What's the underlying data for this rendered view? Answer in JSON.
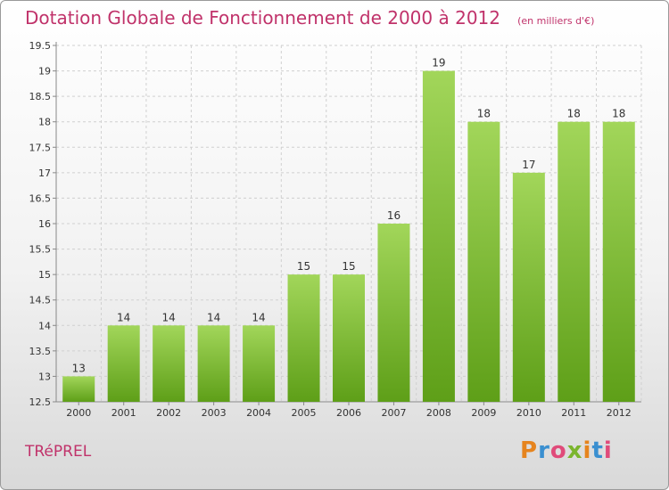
{
  "header": {
    "title": "Dotation Globale de Fonctionnement de 2000 à 2012",
    "unit": "(en milliers d'€)"
  },
  "footer": {
    "commune": "TRéPREL",
    "logo_text": "Proxiti"
  },
  "colors": {
    "title": "#c0326a",
    "bar_top": "#a2d65a",
    "bar_bottom": "#5e9f18",
    "grid": "#d0d0d0",
    "axis_text": "#333333"
  },
  "chart_data": {
    "type": "bar",
    "categories": [
      "2000",
      "2001",
      "2002",
      "2003",
      "2004",
      "2005",
      "2006",
      "2007",
      "2008",
      "2009",
      "2010",
      "2011",
      "2012"
    ],
    "values": [
      13,
      14,
      14,
      14,
      14,
      15,
      15,
      16,
      19,
      18,
      17,
      18,
      18
    ],
    "data_labels": [
      "13",
      "14",
      "14",
      "14",
      "14",
      "15",
      "15",
      "16",
      "19",
      "18",
      "17",
      "18",
      "18"
    ],
    "ylim": [
      12.5,
      19.5
    ],
    "yticks": [
      12.5,
      13,
      13.5,
      14,
      14.5,
      15,
      15.5,
      16,
      16.5,
      17,
      17.5,
      18,
      18.5,
      19,
      19.5
    ],
    "ytick_labels": [
      "12.5",
      "13",
      "13.5",
      "14",
      "14.5",
      "15",
      "15.5",
      "16",
      "16.5",
      "17",
      "17.5",
      "18",
      "18.5",
      "19",
      "19.5"
    ],
    "grid": true,
    "legend": "none"
  }
}
